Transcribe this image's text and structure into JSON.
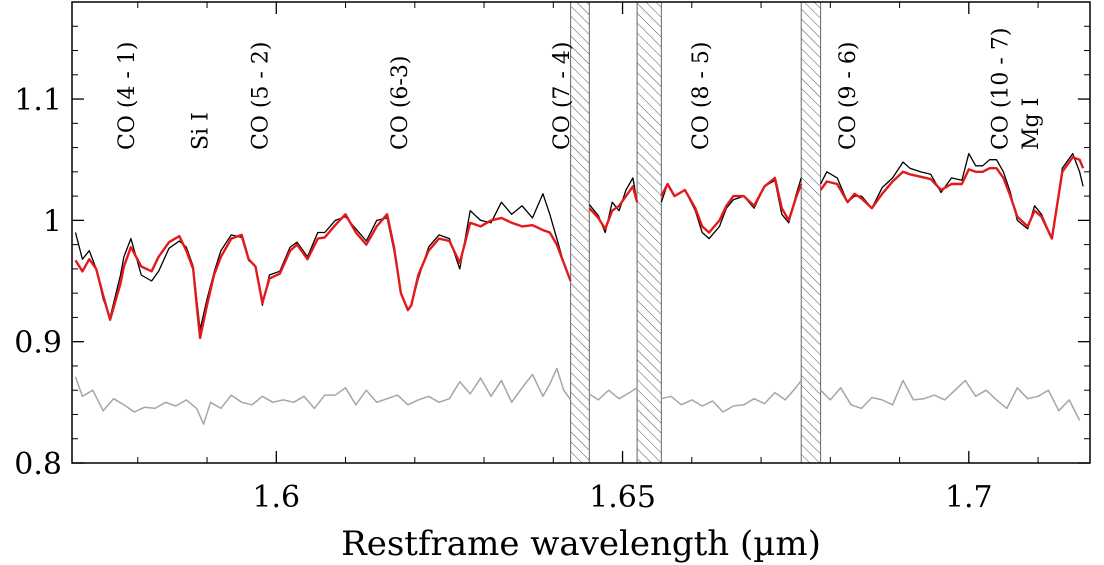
{
  "chart_data": {
    "type": "line",
    "title": "",
    "xlabel": "Restframe wavelength (µm)",
    "ylabel": "",
    "xlim": [
      1.5705,
      1.7175
    ],
    "ylim": [
      0.8,
      1.18
    ],
    "x_ticks": [
      1.6,
      1.65,
      1.7
    ],
    "x_tick_labels": [
      "1.6",
      "1.65",
      "1.7"
    ],
    "y_ticks": [
      0.8,
      0.9,
      1.0,
      1.1
    ],
    "y_tick_labels": [
      "0.8",
      "0.9",
      "1",
      "1.1"
    ],
    "grid": false,
    "legend": "none",
    "colors": {
      "observed": "#000000",
      "model": "#e31a1c",
      "residual": "#a6a6a6",
      "mask": "#666666"
    },
    "masked_regions": [
      [
        1.6425,
        1.6452
      ],
      [
        1.6521,
        1.6556
      ],
      [
        1.6758,
        1.6786
      ]
    ],
    "line_labels": [
      {
        "text": "CO (4 - 1)",
        "x": 1.5783
      },
      {
        "text": "Si I",
        "x": 1.5889
      },
      {
        "text": "CO (5 - 2)",
        "x": 1.5976
      },
      {
        "text": "CO (6-3)",
        "x": 1.6177
      },
      {
        "text": "CO (7 - 4)",
        "x": 1.6411
      },
      {
        "text": "CO (8 - 5)",
        "x": 1.6612
      },
      {
        "text": "CO (9 - 6)",
        "x": 1.6824
      },
      {
        "text": "CO (10 - 7)",
        "x": 1.7044
      },
      {
        "text": "Mg I",
        "x": 1.7088
      }
    ],
    "series": [
      {
        "key": "observed",
        "x": [
          1.571,
          1.572,
          1.573,
          1.574,
          1.575,
          1.576,
          1.5775,
          1.578,
          1.579,
          1.5805,
          1.582,
          1.583,
          1.5845,
          1.586,
          1.587,
          1.588,
          1.5885,
          1.589,
          1.59,
          1.591,
          1.592,
          1.5935,
          1.595,
          1.596,
          1.597,
          1.598,
          1.599,
          1.6005,
          1.602,
          1.603,
          1.6045,
          1.606,
          1.607,
          1.6085,
          1.61,
          1.6115,
          1.613,
          1.6145,
          1.616,
          1.617,
          1.618,
          1.619,
          1.6195,
          1.6205,
          1.622,
          1.6235,
          1.625,
          1.6265,
          1.628,
          1.6295,
          1.631,
          1.6325,
          1.634,
          1.6355,
          1.637,
          1.6385,
          1.6395,
          1.6405,
          1.6415,
          1.6425
        ],
        "y": [
          0.99,
          0.968,
          0.975,
          0.96,
          0.935,
          0.92,
          0.955,
          0.97,
          0.985,
          0.955,
          0.95,
          0.958,
          0.977,
          0.983,
          0.978,
          0.962,
          0.935,
          0.91,
          0.935,
          0.957,
          0.975,
          0.988,
          0.986,
          0.967,
          0.962,
          0.93,
          0.955,
          0.958,
          0.978,
          0.982,
          0.97,
          0.99,
          0.99,
          1.0,
          1.003,
          0.993,
          0.983,
          1.0,
          1.002,
          0.975,
          0.94,
          0.927,
          0.93,
          0.952,
          0.978,
          0.988,
          0.985,
          0.96,
          1.008,
          1.0,
          0.998,
          1.015,
          1.005,
          1.012,
          1.002,
          1.022,
          1.005,
          0.985,
          0.965,
          0.95
        ]
      },
      {
        "key": "observed",
        "x": [
          1.6452,
          1.6465,
          1.6475,
          1.6485,
          1.6495,
          1.6505,
          1.6515,
          1.6521
        ],
        "y": [
          1.013,
          1.004,
          0.99,
          1.015,
          1.008,
          1.025,
          1.035,
          1.015
        ]
      },
      {
        "key": "observed",
        "x": [
          1.6556,
          1.6565,
          1.6575,
          1.659,
          1.6605,
          1.6615,
          1.6625,
          1.664,
          1.665,
          1.666,
          1.6675,
          1.669,
          1.6705,
          1.672,
          1.673,
          1.674,
          1.675,
          1.6758
        ],
        "y": [
          1.015,
          1.03,
          1.02,
          1.025,
          1.008,
          0.99,
          0.985,
          0.995,
          1.01,
          1.017,
          1.02,
          1.01,
          1.028,
          1.033,
          1.005,
          0.998,
          1.02,
          1.035
        ]
      },
      {
        "key": "observed",
        "x": [
          1.6786,
          1.6795,
          1.681,
          1.6825,
          1.6835,
          1.6845,
          1.686,
          1.6875,
          1.689,
          1.6905,
          1.6915,
          1.693,
          1.6945,
          1.696,
          1.6975,
          1.699,
          1.7,
          1.701,
          1.702,
          1.703,
          1.704,
          1.705,
          1.706,
          1.707,
          1.7085,
          1.7095,
          1.7105,
          1.712,
          1.7135,
          1.715,
          1.716,
          1.7165
        ],
        "y": [
          1.03,
          1.04,
          1.035,
          1.015,
          1.02,
          1.02,
          1.01,
          1.027,
          1.035,
          1.048,
          1.043,
          1.04,
          1.038,
          1.023,
          1.035,
          1.033,
          1.055,
          1.045,
          1.045,
          1.05,
          1.05,
          1.04,
          1.023,
          1.0,
          0.993,
          1.012,
          1.005,
          0.985,
          1.043,
          1.055,
          1.04,
          1.028
        ]
      },
      {
        "key": "model",
        "x": [
          1.571,
          1.572,
          1.573,
          1.574,
          1.575,
          1.576,
          1.5775,
          1.578,
          1.579,
          1.5805,
          1.582,
          1.583,
          1.5845,
          1.586,
          1.587,
          1.588,
          1.5885,
          1.589,
          1.59,
          1.591,
          1.592,
          1.5935,
          1.595,
          1.596,
          1.597,
          1.598,
          1.599,
          1.6005,
          1.602,
          1.603,
          1.6045,
          1.606,
          1.607,
          1.6085,
          1.61,
          1.6115,
          1.613,
          1.6145,
          1.616,
          1.617,
          1.618,
          1.619,
          1.6195,
          1.6205,
          1.622,
          1.6235,
          1.625,
          1.6265,
          1.628,
          1.6295,
          1.631,
          1.6325,
          1.634,
          1.6355,
          1.637,
          1.6385,
          1.6395,
          1.6405,
          1.6415,
          1.6425
        ],
        "y": [
          0.967,
          0.958,
          0.968,
          0.96,
          0.938,
          0.918,
          0.948,
          0.962,
          0.978,
          0.962,
          0.958,
          0.97,
          0.982,
          0.987,
          0.975,
          0.96,
          0.93,
          0.903,
          0.93,
          0.955,
          0.97,
          0.985,
          0.988,
          0.968,
          0.962,
          0.932,
          0.952,
          0.956,
          0.975,
          0.98,
          0.968,
          0.985,
          0.986,
          0.996,
          1.005,
          0.99,
          0.98,
          0.995,
          1.005,
          0.978,
          0.94,
          0.926,
          0.93,
          0.955,
          0.975,
          0.985,
          0.983,
          0.965,
          0.998,
          0.995,
          1.0,
          1.002,
          0.998,
          0.995,
          0.996,
          0.992,
          0.99,
          0.98,
          0.965,
          0.95
        ]
      },
      {
        "key": "model",
        "x": [
          1.6452,
          1.6465,
          1.6475,
          1.6485,
          1.6495,
          1.6505,
          1.6515,
          1.6521
        ],
        "y": [
          1.01,
          1.002,
          0.993,
          1.008,
          1.012,
          1.02,
          1.028,
          1.015
        ]
      },
      {
        "key": "model",
        "x": [
          1.6556,
          1.6565,
          1.6575,
          1.659,
          1.6605,
          1.6615,
          1.6625,
          1.664,
          1.665,
          1.666,
          1.6675,
          1.669,
          1.6705,
          1.672,
          1.673,
          1.674,
          1.675,
          1.6758
        ],
        "y": [
          1.02,
          1.03,
          1.02,
          1.025,
          1.01,
          0.995,
          0.99,
          1.0,
          1.012,
          1.02,
          1.02,
          1.012,
          1.028,
          1.035,
          1.01,
          1.0,
          1.018,
          1.03
        ]
      },
      {
        "key": "model",
        "x": [
          1.6786,
          1.6795,
          1.681,
          1.6825,
          1.6835,
          1.6845,
          1.686,
          1.6875,
          1.689,
          1.6905,
          1.6915,
          1.693,
          1.6945,
          1.696,
          1.6975,
          1.699,
          1.7,
          1.701,
          1.702,
          1.703,
          1.704,
          1.705,
          1.706,
          1.707,
          1.7085,
          1.7095,
          1.7105,
          1.712,
          1.7135,
          1.715,
          1.716,
          1.7165
        ],
        "y": [
          1.025,
          1.032,
          1.03,
          1.015,
          1.022,
          1.018,
          1.01,
          1.022,
          1.032,
          1.04,
          1.038,
          1.036,
          1.034,
          1.025,
          1.03,
          1.03,
          1.042,
          1.04,
          1.04,
          1.043,
          1.043,
          1.035,
          1.02,
          1.003,
          0.995,
          1.008,
          1.003,
          0.985,
          1.04,
          1.052,
          1.05,
          1.043
        ]
      },
      {
        "key": "residual",
        "x": [
          1.571,
          1.572,
          1.5735,
          1.575,
          1.5765,
          1.578,
          1.5795,
          1.581,
          1.5825,
          1.584,
          1.5855,
          1.587,
          1.5885,
          1.5895,
          1.5905,
          1.592,
          1.5935,
          1.595,
          1.5965,
          1.598,
          1.5995,
          1.601,
          1.6025,
          1.604,
          1.6055,
          1.607,
          1.6085,
          1.61,
          1.6115,
          1.613,
          1.6145,
          1.616,
          1.6175,
          1.619,
          1.6205,
          1.622,
          1.6235,
          1.625,
          1.6265,
          1.628,
          1.6295,
          1.631,
          1.6325,
          1.634,
          1.6355,
          1.637,
          1.6385,
          1.6395,
          1.6405,
          1.6415,
          1.6425
        ],
        "y": [
          0.871,
          0.855,
          0.86,
          0.843,
          0.853,
          0.848,
          0.842,
          0.846,
          0.845,
          0.85,
          0.847,
          0.852,
          0.845,
          0.832,
          0.85,
          0.845,
          0.856,
          0.85,
          0.848,
          0.855,
          0.85,
          0.852,
          0.85,
          0.855,
          0.845,
          0.856,
          0.856,
          0.862,
          0.848,
          0.86,
          0.85,
          0.853,
          0.856,
          0.848,
          0.852,
          0.855,
          0.85,
          0.853,
          0.867,
          0.857,
          0.87,
          0.855,
          0.868,
          0.85,
          0.862,
          0.873,
          0.855,
          0.865,
          0.878,
          0.86,
          0.852
        ]
      },
      {
        "key": "residual",
        "x": [
          1.6452,
          1.6465,
          1.648,
          1.6495,
          1.651,
          1.6521
        ],
        "y": [
          0.857,
          0.852,
          0.86,
          0.853,
          0.858,
          0.862
        ]
      },
      {
        "key": "residual",
        "x": [
          1.6556,
          1.657,
          1.6585,
          1.66,
          1.6615,
          1.663,
          1.6645,
          1.666,
          1.6675,
          1.669,
          1.6705,
          1.672,
          1.6735,
          1.675,
          1.6758
        ],
        "y": [
          0.853,
          0.855,
          0.848,
          0.852,
          0.847,
          0.851,
          0.842,
          0.847,
          0.848,
          0.853,
          0.849,
          0.858,
          0.852,
          0.862,
          0.868
        ]
      },
      {
        "key": "residual",
        "x": [
          1.6786,
          1.68,
          1.6815,
          1.683,
          1.6845,
          1.686,
          1.6875,
          1.689,
          1.6905,
          1.692,
          1.6935,
          1.695,
          1.6965,
          1.698,
          1.6995,
          1.701,
          1.7025,
          1.704,
          1.7055,
          1.707,
          1.7085,
          1.71,
          1.7115,
          1.713,
          1.7145,
          1.716
        ],
        "y": [
          0.86,
          0.852,
          0.862,
          0.848,
          0.845,
          0.854,
          0.852,
          0.848,
          0.868,
          0.852,
          0.853,
          0.856,
          0.852,
          0.86,
          0.868,
          0.855,
          0.86,
          0.852,
          0.845,
          0.862,
          0.853,
          0.855,
          0.86,
          0.843,
          0.852,
          0.835
        ]
      }
    ]
  }
}
